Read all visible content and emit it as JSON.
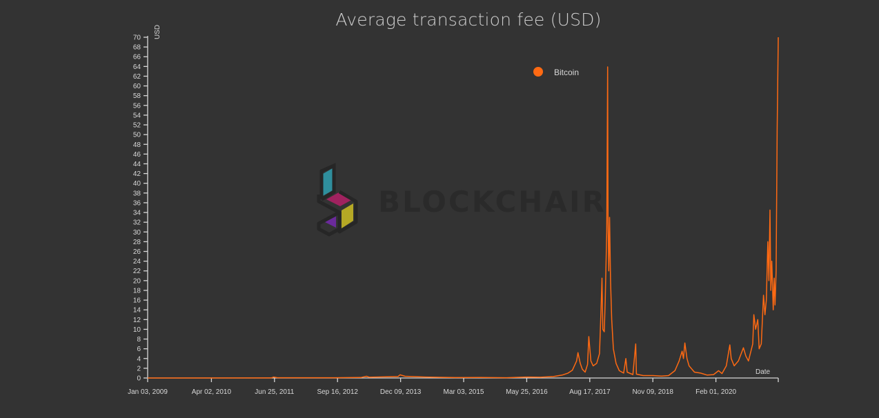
{
  "chart_data": {
    "type": "line",
    "title": "Average transaction fee (USD)",
    "ylabel": "USD",
    "xlabel": "Date",
    "ylim": [
      0,
      70
    ],
    "y_ticks": [
      0,
      2,
      4,
      6,
      8,
      10,
      12,
      14,
      16,
      18,
      20,
      22,
      24,
      26,
      28,
      30,
      32,
      34,
      36,
      38,
      40,
      42,
      44,
      46,
      48,
      50,
      52,
      54,
      56,
      58,
      60,
      62,
      64,
      66,
      68,
      70
    ],
    "x_range": [
      "2009-01-03",
      "2021-04-20"
    ],
    "x_ticks": [
      {
        "date": "2009-01-03",
        "label": "Jan 03, 2009"
      },
      {
        "date": "2010-04-02",
        "label": "Apr 02, 2010"
      },
      {
        "date": "2011-06-25",
        "label": "Jun 25, 2011"
      },
      {
        "date": "2012-09-16",
        "label": "Sep 16, 2012"
      },
      {
        "date": "2013-12-09",
        "label": "Dec 09, 2013"
      },
      {
        "date": "2015-03-03",
        "label": "Mar 03, 2015"
      },
      {
        "date": "2016-05-25",
        "label": "May 25, 2016"
      },
      {
        "date": "2017-08-17",
        "label": "Aug 17, 2017"
      },
      {
        "date": "2018-11-09",
        "label": "Nov 09, 2018"
      },
      {
        "date": "2020-02-01",
        "label": "Feb 01, 2020"
      }
    ],
    "legend": {
      "position": "top-center",
      "color": "#ff6a13"
    },
    "series": [
      {
        "name": "Bitcoin",
        "color": "#ff6a13",
        "points": [
          [
            "2009-01-03",
            0.0
          ],
          [
            "2011-06-01",
            0.02
          ],
          [
            "2011-06-20",
            0.2
          ],
          [
            "2011-07-15",
            0.05
          ],
          [
            "2012-09-01",
            0.05
          ],
          [
            "2013-03-01",
            0.1
          ],
          [
            "2013-04-10",
            0.35
          ],
          [
            "2013-05-01",
            0.15
          ],
          [
            "2013-11-20",
            0.3
          ],
          [
            "2013-12-05",
            0.65
          ],
          [
            "2014-01-10",
            0.35
          ],
          [
            "2014-06-01",
            0.2
          ],
          [
            "2015-01-01",
            0.08
          ],
          [
            "2015-07-01",
            0.1
          ],
          [
            "2016-01-01",
            0.06
          ],
          [
            "2016-06-01",
            0.2
          ],
          [
            "2016-09-01",
            0.15
          ],
          [
            "2016-12-01",
            0.3
          ],
          [
            "2017-02-01",
            0.6
          ],
          [
            "2017-03-15",
            1.0
          ],
          [
            "2017-04-15",
            1.6
          ],
          [
            "2017-05-15",
            3.5
          ],
          [
            "2017-05-25",
            5.2
          ],
          [
            "2017-06-10",
            3.0
          ],
          [
            "2017-06-25",
            1.8
          ],
          [
            "2017-07-15",
            1.2
          ],
          [
            "2017-08-01",
            2.8
          ],
          [
            "2017-08-10",
            8.5
          ],
          [
            "2017-08-25",
            3.5
          ],
          [
            "2017-09-10",
            2.5
          ],
          [
            "2017-10-05",
            3.0
          ],
          [
            "2017-10-25",
            5.0
          ],
          [
            "2017-11-05",
            14.0
          ],
          [
            "2017-11-12",
            20.5
          ],
          [
            "2017-11-18",
            10.0
          ],
          [
            "2017-11-28",
            9.5
          ],
          [
            "2017-12-05",
            16.0
          ],
          [
            "2017-12-12",
            25.0
          ],
          [
            "2017-12-16",
            30.0
          ],
          [
            "2017-12-22",
            63.9
          ],
          [
            "2017-12-25",
            32.0
          ],
          [
            "2017-12-30",
            22.0
          ],
          [
            "2018-01-05",
            33.0
          ],
          [
            "2018-01-12",
            20.0
          ],
          [
            "2018-01-20",
            12.0
          ],
          [
            "2018-02-01",
            6.0
          ],
          [
            "2018-02-20",
            3.0
          ],
          [
            "2018-03-15",
            1.5
          ],
          [
            "2018-04-15",
            1.0
          ],
          [
            "2018-05-01",
            4.0
          ],
          [
            "2018-05-10",
            1.2
          ],
          [
            "2018-06-20",
            0.7
          ],
          [
            "2018-07-10",
            7.0
          ],
          [
            "2018-07-15",
            0.8
          ],
          [
            "2018-09-01",
            0.5
          ],
          [
            "2018-11-09",
            0.5
          ],
          [
            "2019-01-10",
            0.4
          ],
          [
            "2019-03-01",
            0.5
          ],
          [
            "2019-04-15",
            1.5
          ],
          [
            "2019-05-15",
            3.5
          ],
          [
            "2019-06-05",
            5.5
          ],
          [
            "2019-06-15",
            4.0
          ],
          [
            "2019-06-25",
            7.2
          ],
          [
            "2019-07-10",
            4.0
          ],
          [
            "2019-07-25",
            2.5
          ],
          [
            "2019-09-01",
            1.2
          ],
          [
            "2019-10-15",
            1.0
          ],
          [
            "2019-12-01",
            0.6
          ],
          [
            "2020-01-15",
            0.7
          ],
          [
            "2020-02-20",
            1.5
          ],
          [
            "2020-03-15",
            0.9
          ],
          [
            "2020-04-15",
            2.5
          ],
          [
            "2020-05-10",
            6.8
          ],
          [
            "2020-05-20",
            4.0
          ],
          [
            "2020-06-10",
            2.5
          ],
          [
            "2020-07-10",
            3.5
          ],
          [
            "2020-08-15",
            6.2
          ],
          [
            "2020-09-01",
            4.5
          ],
          [
            "2020-09-20",
            3.5
          ],
          [
            "2020-10-20",
            7.0
          ],
          [
            "2020-10-28",
            13.0
          ],
          [
            "2020-11-10",
            10.0
          ],
          [
            "2020-11-25",
            12.0
          ],
          [
            "2020-12-05",
            6.0
          ],
          [
            "2020-12-20",
            7.0
          ],
          [
            "2021-01-05",
            17.0
          ],
          [
            "2021-01-15",
            13.0
          ],
          [
            "2021-01-25",
            16.0
          ],
          [
            "2021-02-05",
            28.0
          ],
          [
            "2021-02-12",
            20.0
          ],
          [
            "2021-02-20",
            34.5
          ],
          [
            "2021-02-26",
            18.0
          ],
          [
            "2021-03-05",
            24.0
          ],
          [
            "2021-03-15",
            14.0
          ],
          [
            "2021-03-22",
            20.5
          ],
          [
            "2021-03-28",
            15.0
          ],
          [
            "2021-04-05",
            22.0
          ],
          [
            "2021-04-12",
            51.0
          ],
          [
            "2021-04-20",
            70.0
          ]
        ]
      }
    ]
  },
  "watermark": {
    "text": "BLOCKCHAIR",
    "colors": {
      "cyan": "#2f8f9d",
      "magenta": "#a0225f",
      "purple": "#6a2a9a",
      "yellow": "#b5a825"
    }
  }
}
